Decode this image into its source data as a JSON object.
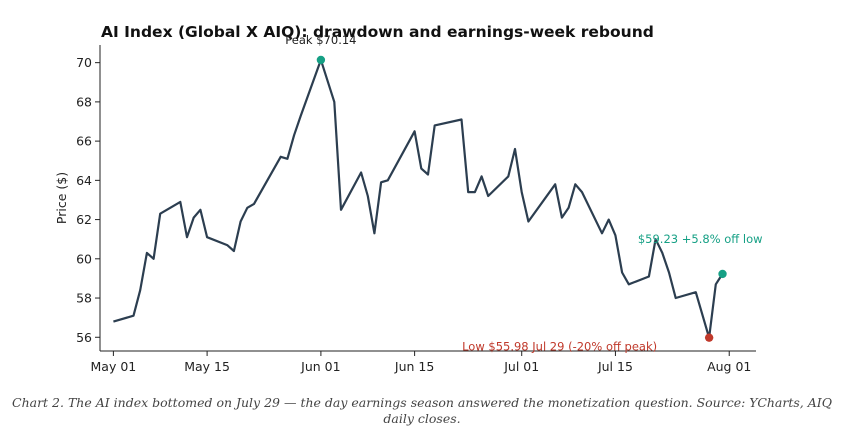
{
  "chart_data": {
    "type": "line",
    "title": "AI Index (Global X AIQ): drawdown and earnings-week rebound",
    "ylabel": "Price ($)",
    "xlabel": "",
    "ylim": [
      55.3,
      70.9
    ],
    "xlim": [
      "2025-04-29",
      "2025-08-05"
    ],
    "yticks": [
      56,
      58,
      60,
      62,
      64,
      66,
      68,
      70
    ],
    "xticks": [
      {
        "date": "2025-05-01",
        "label": "May 01"
      },
      {
        "date": "2025-05-15",
        "label": "May 15"
      },
      {
        "date": "2025-06-01",
        "label": "Jun 01"
      },
      {
        "date": "2025-06-15",
        "label": "Jun 15"
      },
      {
        "date": "2025-07-01",
        "label": "Jul 01"
      },
      {
        "date": "2025-07-15",
        "label": "Jul 15"
      },
      {
        "date": "2025-08-01",
        "label": "Aug 01"
      }
    ],
    "grid": false,
    "line_color": "#2c3e50",
    "series": [
      {
        "name": "",
        "points": [
          {
            "x": "2025-05-01",
            "y": 56.8
          },
          {
            "x": "2025-05-04",
            "y": 57.1
          },
          {
            "x": "2025-05-05",
            "y": 58.4
          },
          {
            "x": "2025-05-06",
            "y": 60.3
          },
          {
            "x": "2025-05-07",
            "y": 60.0
          },
          {
            "x": "2025-05-08",
            "y": 62.3
          },
          {
            "x": "2025-05-11",
            "y": 62.9
          },
          {
            "x": "2025-05-12",
            "y": 61.1
          },
          {
            "x": "2025-05-13",
            "y": 62.1
          },
          {
            "x": "2025-05-14",
            "y": 62.5
          },
          {
            "x": "2025-05-15",
            "y": 61.1
          },
          {
            "x": "2025-05-18",
            "y": 60.7
          },
          {
            "x": "2025-05-19",
            "y": 60.4
          },
          {
            "x": "2025-05-20",
            "y": 61.9
          },
          {
            "x": "2025-05-21",
            "y": 62.6
          },
          {
            "x": "2025-05-22",
            "y": 62.8
          },
          {
            "x": "2025-05-26",
            "y": 65.2
          },
          {
            "x": "2025-05-27",
            "y": 65.1
          },
          {
            "x": "2025-05-28",
            "y": 66.3
          },
          {
            "x": "2025-05-29",
            "y": 67.3
          },
          {
            "x": "2025-06-01",
            "y": 70.14
          },
          {
            "x": "2025-06-03",
            "y": 68.0
          },
          {
            "x": "2025-06-04",
            "y": 62.5
          },
          {
            "x": "2025-06-07",
            "y": 64.4
          },
          {
            "x": "2025-06-08",
            "y": 63.2
          },
          {
            "x": "2025-06-09",
            "y": 61.3
          },
          {
            "x": "2025-06-10",
            "y": 63.9
          },
          {
            "x": "2025-06-11",
            "y": 64.0
          },
          {
            "x": "2025-06-15",
            "y": 66.5
          },
          {
            "x": "2025-06-16",
            "y": 64.6
          },
          {
            "x": "2025-06-17",
            "y": 64.3
          },
          {
            "x": "2025-06-18",
            "y": 66.8
          },
          {
            "x": "2025-06-22",
            "y": 67.1
          },
          {
            "x": "2025-06-23",
            "y": 63.4
          },
          {
            "x": "2025-06-24",
            "y": 63.4
          },
          {
            "x": "2025-06-25",
            "y": 64.2
          },
          {
            "x": "2025-06-26",
            "y": 63.2
          },
          {
            "x": "2025-06-29",
            "y": 64.2
          },
          {
            "x": "2025-06-30",
            "y": 65.6
          },
          {
            "x": "2025-07-01",
            "y": 63.4
          },
          {
            "x": "2025-07-02",
            "y": 61.9
          },
          {
            "x": "2025-07-06",
            "y": 63.8
          },
          {
            "x": "2025-07-07",
            "y": 62.1
          },
          {
            "x": "2025-07-08",
            "y": 62.6
          },
          {
            "x": "2025-07-09",
            "y": 63.8
          },
          {
            "x": "2025-07-10",
            "y": 63.4
          },
          {
            "x": "2025-07-13",
            "y": 61.3
          },
          {
            "x": "2025-07-14",
            "y": 62.0
          },
          {
            "x": "2025-07-15",
            "y": 61.2
          },
          {
            "x": "2025-07-16",
            "y": 59.3
          },
          {
            "x": "2025-07-17",
            "y": 58.7
          },
          {
            "x": "2025-07-20",
            "y": 59.1
          },
          {
            "x": "2025-07-21",
            "y": 61.0
          },
          {
            "x": "2025-07-22",
            "y": 60.3
          },
          {
            "x": "2025-07-23",
            "y": 59.3
          },
          {
            "x": "2025-07-24",
            "y": 58.0
          },
          {
            "x": "2025-07-27",
            "y": 58.3
          },
          {
            "x": "2025-07-29",
            "y": 55.98
          },
          {
            "x": "2025-07-30",
            "y": 58.7
          },
          {
            "x": "2025-07-31",
            "y": 59.23
          }
        ]
      }
    ],
    "markers": [
      {
        "x": "2025-06-01",
        "y": 70.14,
        "color": "#16a085",
        "label": "Peak $70.14",
        "label_color": "#222222",
        "label_pos": "above"
      },
      {
        "x": "2025-07-29",
        "y": 55.98,
        "color": "#c0392b",
        "label": "Low $55.98  Jul 29 (-20% off peak)",
        "label_color": "#c0392b",
        "label_pos": "left-below"
      },
      {
        "x": "2025-07-31",
        "y": 59.23,
        "color": "#16a085",
        "label": "$59.23  +5.8% off low",
        "label_color": "#16a085",
        "label_pos": "above-left"
      }
    ]
  },
  "caption": "Chart 2. The AI index bottomed on July 29 — the day earnings season answered the monetization question. Source: YCharts, AIQ daily closes."
}
